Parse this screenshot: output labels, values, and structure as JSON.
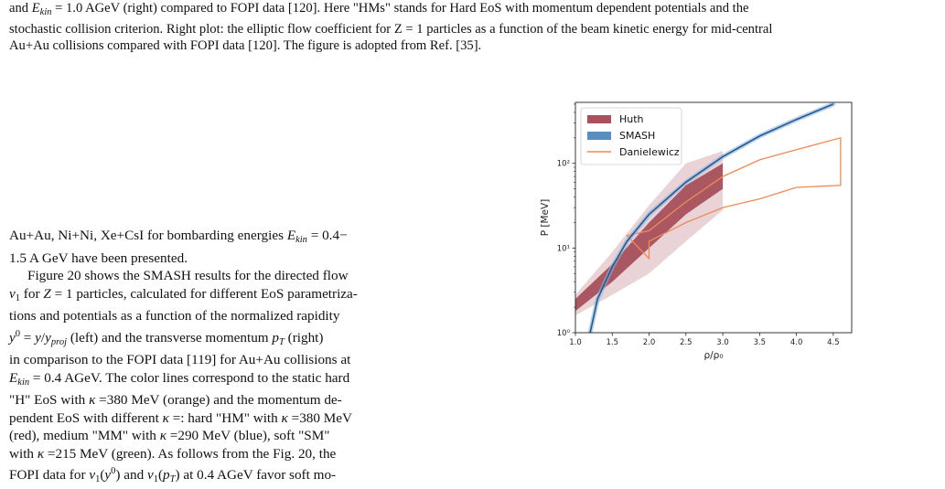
{
  "caption": {
    "line1_pre": "and ",
    "line1_math": "E",
    "line1_sub": "kin",
    "line1_post": " = 1.0 AGeV (right) compared to FOPI data [120]. Here \"HMs\" stands for Hard EoS with momentum dependent potentials and the",
    "line2": "stochastic collision criterion. Right plot: the elliptic flow coefficient for Z = 1 particles as a function of the beam kinetic energy for mid-central",
    "line3": "Au+Au collisions compared with FOPI data [120]. The figure is adopted from Ref. [35]."
  },
  "body": {
    "p1_a": "Au+Au, Ni+Ni, Xe+CsI for bombarding energies ",
    "p1_b": " = 0.4−",
    "p1_c": "1.5 A GeV have been presented.",
    "p2_l1_a": "Figure 20 shows the SMASH results for the directed flow",
    "p2_l2_a": " for ",
    "p2_l2_b": " = 1 particles, calculated for different EoS parametriza-",
    "p2_l3": "tions and potentials as a function of the normalized rapidity",
    "p2_l4_b": " (left) and the transverse momentum ",
    "p2_l4_c": " (right)",
    "p2_l5": "in comparison to the FOPI data [119] for Au+Au collisions at",
    "p2_l6_b": " = 0.4 AGeV. The color lines correspond to the static hard",
    "p2_l7_a": "\"H\" EoS with ",
    "p2_l7_b": " =380 MeV (orange) and the momentum de-",
    "p2_l8_a": "pendent EoS with different ",
    "p2_l8_b": " =: hard \"HM\" with ",
    "p2_l8_c": " =380 MeV",
    "p2_l9_a": "(red), medium \"MM\" with ",
    "p2_l9_b": " =290 MeV (blue), soft \"SM\"",
    "p2_l10_a": "with ",
    "p2_l10_b": " =215 MeV (green). As follows from the Fig. 20, the",
    "p2_l11_a": "FOPI data for ",
    "p2_l11_b": " and ",
    "p2_l11_c": " at 0.4 AGeV favor soft mo-"
  },
  "chart_data": {
    "type": "area",
    "xlabel": "ρ/ρ₀",
    "ylabel": "P [MeV]",
    "xlim": [
      1.0,
      4.75
    ],
    "ylim_log10": [
      0,
      2.72
    ],
    "log_y": true,
    "x_ticks": [
      "1.0",
      "1.5",
      "2.0",
      "2.5",
      "3.0",
      "3.5",
      "4.0",
      "4.5"
    ],
    "y_ticks": [
      "10⁰",
      "10¹",
      "10²"
    ],
    "legend_position": "top-left",
    "series": [
      {
        "name": "Huth",
        "color": "#a8505b",
        "band_inner_x": [
          1.0,
          1.5,
          2.0,
          2.5,
          3.0
        ],
        "band_inner_lo": [
          1.8,
          4.0,
          10.0,
          25.0,
          50.0
        ],
        "band_inner_hi": [
          2.5,
          6.5,
          20.0,
          55.0,
          100.0
        ],
        "band_outer_x": [
          1.0,
          1.5,
          2.0,
          2.5,
          3.0
        ],
        "band_outer_lo": [
          1.6,
          2.8,
          5.0,
          12.0,
          28.0
        ],
        "band_outer_hi": [
          2.8,
          9.0,
          32.0,
          100.0,
          140.0
        ]
      },
      {
        "name": "SMASH",
        "color": "#1f5b99",
        "x": [
          1.2,
          1.3,
          1.5,
          1.7,
          2.0,
          2.5,
          3.0,
          3.5,
          4.0,
          4.5
        ],
        "y": [
          1.0,
          2.5,
          6.0,
          12.0,
          25.0,
          60.0,
          120.0,
          210.0,
          330.0,
          500.0
        ]
      },
      {
        "name": "Danielewicz",
        "color": "#f08a55",
        "polygon_x": [
          1.7,
          2.0,
          2.5,
          3.0,
          3.5,
          4.0,
          4.6,
          4.6,
          4.0,
          3.5,
          3.0,
          2.5,
          2.0,
          2.0
        ],
        "polygon_y": [
          14.0,
          16.0,
          35.0,
          70.0,
          110.0,
          145.0,
          200.0,
          55.0,
          52.0,
          38.0,
          30.0,
          20.0,
          12.0,
          7.5
        ]
      }
    ]
  }
}
